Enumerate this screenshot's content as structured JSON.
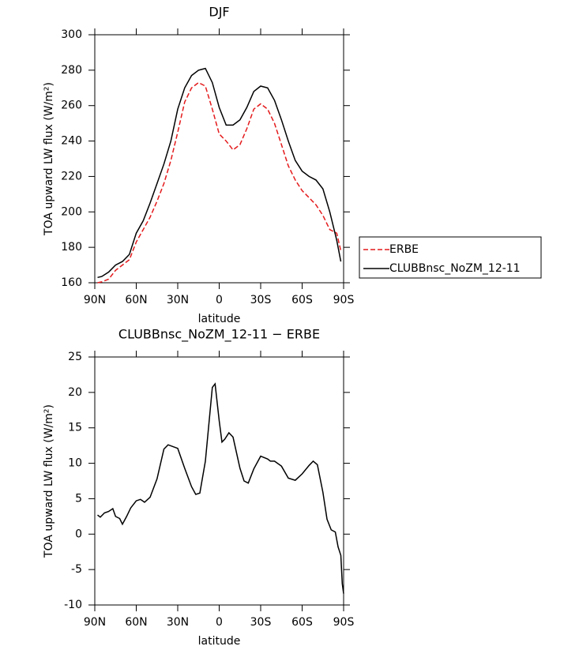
{
  "chart_data": [
    {
      "type": "line",
      "title": "DJF",
      "xlabel": "latitude",
      "ylabel": "TOA upward LW flux (W/m²)",
      "x": [
        88,
        85,
        80,
        75,
        70,
        65,
        60,
        55,
        50,
        45,
        40,
        35,
        30,
        25,
        20,
        15,
        10,
        5,
        0,
        -5,
        -10,
        -15,
        -20,
        -25,
        -30,
        -35,
        -40,
        -45,
        -50,
        -55,
        -60,
        -65,
        -70,
        -75,
        -80,
        -85,
        -88
      ],
      "series": [
        {
          "name": "ERBE",
          "color": "#e41a1c",
          "linestyle": "dashed",
          "values": [
            160,
            160.5,
            162,
            167,
            170,
            173,
            183,
            190,
            197,
            206,
            216,
            229,
            245,
            262,
            270,
            273,
            271,
            258,
            244,
            240,
            235,
            238,
            247,
            258,
            261,
            258,
            250,
            238,
            226,
            218,
            212,
            208,
            204,
            198,
            190,
            188,
            178
          ]
        },
        {
          "name": "CLUBBnsc_NoZM_12-11",
          "color": "#000000",
          "linestyle": "solid",
          "values": [
            163,
            163.5,
            166,
            170,
            172,
            176,
            188,
            195,
            205,
            216,
            227,
            240,
            258,
            270,
            277,
            280,
            281,
            273,
            259,
            249,
            249,
            252,
            259,
            268,
            271,
            270,
            263,
            252,
            240,
            229,
            223,
            220,
            218,
            213,
            200,
            184,
            172
          ]
        }
      ],
      "xlim": [
        90,
        -90
      ],
      "xticks": [
        {
          "value": 90,
          "label": "90N"
        },
        {
          "value": 60,
          "label": "60N"
        },
        {
          "value": 30,
          "label": "30N"
        },
        0,
        {
          "value": -30,
          "label": "30S"
        },
        {
          "value": -60,
          "label": "60S"
        },
        {
          "value": -90,
          "label": "90S"
        }
      ],
      "ylim": [
        160,
        300
      ],
      "yticks": [
        160,
        180,
        200,
        220,
        240,
        260,
        280,
        300
      ],
      "legend": "right"
    },
    {
      "type": "line",
      "title": "CLUBBnsc_NoZM_12-11 − ERBE",
      "xlabel": "latitude",
      "ylabel": "TOA upward LW flux (W/m²)",
      "x": [
        88,
        86,
        83,
        80,
        77,
        75,
        72,
        70,
        67,
        64,
        60,
        57,
        54,
        50,
        45,
        40,
        37,
        30,
        25,
        20,
        17,
        14,
        10,
        5,
        3,
        0,
        -2,
        -4,
        -7,
        -10,
        -15,
        -18,
        -21,
        -25,
        -30,
        -35,
        -37,
        -40,
        -45,
        -50,
        -55,
        -60,
        -65,
        -68,
        -71,
        -75,
        -78,
        -81,
        -84,
        -86,
        -88,
        -89,
        -90
      ],
      "series": [
        {
          "name": "CLUBBnsc_NoZM_12-11 − ERBE",
          "color": "#000000",
          "linestyle": "solid",
          "values": [
            2.7,
            2.4,
            3,
            3.2,
            3.6,
            2.5,
            2.2,
            1.4,
            2.5,
            3.7,
            4.7,
            4.9,
            4.5,
            5.2,
            7.8,
            12,
            12.6,
            12.1,
            9.3,
            6.7,
            5.6,
            5.8,
            10.3,
            20.7,
            21.2,
            16,
            13,
            13.4,
            14.3,
            13.7,
            9.3,
            7.5,
            7.2,
            9.2,
            11,
            10.6,
            10.3,
            10.3,
            9.6,
            7.9,
            7.6,
            8.5,
            9.7,
            10.3,
            9.8,
            5.9,
            2.1,
            0.6,
            0.3,
            -1.8,
            -3,
            -7,
            -8.4
          ]
        }
      ],
      "xlim": [
        90,
        -90
      ],
      "xticks": [
        {
          "value": 90,
          "label": "90N"
        },
        {
          "value": 60,
          "label": "60N"
        },
        {
          "value": 30,
          "label": "30N"
        },
        0,
        {
          "value": -30,
          "label": "30S"
        },
        {
          "value": -60,
          "label": "60S"
        },
        {
          "value": -90,
          "label": "90S"
        }
      ],
      "ylim": [
        -10,
        25
      ],
      "yticks": [
        -10,
        -5,
        0,
        5,
        10,
        15,
        20,
        25
      ]
    }
  ]
}
